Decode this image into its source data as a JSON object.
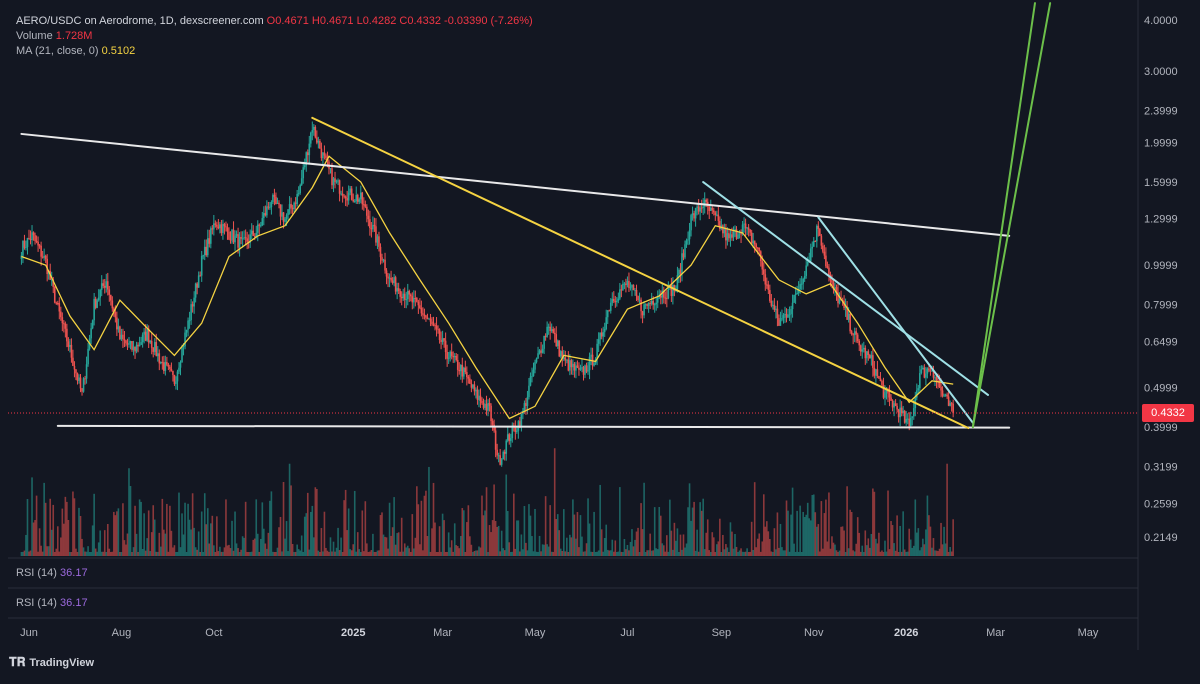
{
  "legend": {
    "symbol": "AERO/USDC on Aerodrome, 1D, dexscreener.com",
    "ohlc": "O0.4671 H0.4671 L0.4282 C0.4332 -0.03390 (-7.26%)",
    "volume_label": "Volume",
    "volume_value": "1.728M",
    "ma_label": "MA (21, close, 0)",
    "ma_value": "0.5102"
  },
  "rsi": [
    {
      "label": "RSI (14)",
      "value": "36.17"
    },
    {
      "label": "RSI (14)",
      "value": "36.17"
    }
  ],
  "last_price": "0.4332",
  "brand": "TradingView",
  "colors": {
    "background": "#131722",
    "up": "#26a69a",
    "down": "#ef5350",
    "ma": "#f5d342",
    "trend_white": "#e9e9ea",
    "trend_yellow": "#f5d342",
    "trend_cyan": "#9fe0e6",
    "trend_green": "#6cc04a",
    "price_line": "#f23645"
  },
  "chart_data": {
    "type": "candlestick",
    "title": "AERO/USDC on Aerodrome, 1D, dexscreener.com",
    "price_axis": {
      "scale": "log",
      "ticks": [
        "4.0000",
        "3.0000",
        "2.3999",
        "1.9999",
        "1.5999",
        "1.2999",
        "0.9999",
        "0.7999",
        "0.6499",
        "0.4999",
        "0.3999",
        "0.3199",
        "0.2599",
        "0.2149"
      ]
    },
    "time_axis": {
      "ticks": [
        {
          "label": "Jun",
          "bold": false
        },
        {
          "label": "Aug",
          "bold": false
        },
        {
          "label": "Oct",
          "bold": false
        },
        {
          "label": "2025",
          "bold": true
        },
        {
          "label": "Mar",
          "bold": false
        },
        {
          "label": "May",
          "bold": false
        },
        {
          "label": "Jul",
          "bold": false
        },
        {
          "label": "Sep",
          "bold": false
        },
        {
          "label": "Nov",
          "bold": false
        },
        {
          "label": "2026",
          "bold": true
        },
        {
          "label": "Mar",
          "bold": false
        },
        {
          "label": "May",
          "bold": false
        }
      ]
    },
    "close_path": [
      [
        "2024-05-27",
        1.1
      ],
      [
        "2024-06-03",
        1.18
      ],
      [
        "2024-06-12",
        1.02
      ],
      [
        "2024-06-20",
        0.78
      ],
      [
        "2024-06-28",
        0.62
      ],
      [
        "2024-07-06",
        0.48
      ],
      [
        "2024-07-14",
        0.8
      ],
      [
        "2024-07-22",
        0.92
      ],
      [
        "2024-07-31",
        0.66
      ],
      [
        "2024-08-09",
        0.62
      ],
      [
        "2024-08-18",
        0.68
      ],
      [
        "2024-08-27",
        0.58
      ],
      [
        "2024-09-05",
        0.52
      ],
      [
        "2024-09-14",
        0.72
      ],
      [
        "2024-09-23",
        1.02
      ],
      [
        "2024-10-02",
        1.28
      ],
      [
        "2024-10-11",
        1.2
      ],
      [
        "2024-10-20",
        1.12
      ],
      [
        "2024-10-30",
        1.22
      ],
      [
        "2024-11-08",
        1.45
      ],
      [
        "2024-11-17",
        1.3
      ],
      [
        "2024-11-26",
        1.5
      ],
      [
        "2024-12-05",
        2.2
      ],
      [
        "2024-12-12",
        1.85
      ],
      [
        "2024-12-19",
        1.6
      ],
      [
        "2024-12-28",
        1.5
      ],
      [
        "2025-01-06",
        1.45
      ],
      [
        "2025-01-15",
        1.2
      ],
      [
        "2025-01-25",
        0.92
      ],
      [
        "2025-02-04",
        0.85
      ],
      [
        "2025-02-14",
        0.78
      ],
      [
        "2025-02-23",
        0.7
      ],
      [
        "2025-03-05",
        0.6
      ],
      [
        "2025-03-14",
        0.55
      ],
      [
        "2025-03-23",
        0.48
      ],
      [
        "2025-04-01",
        0.44
      ],
      [
        "2025-04-07",
        0.33
      ],
      [
        "2025-04-14",
        0.38
      ],
      [
        "2025-04-22",
        0.42
      ],
      [
        "2025-04-30",
        0.55
      ],
      [
        "2025-05-10",
        0.72
      ],
      [
        "2025-05-20",
        0.58
      ],
      [
        "2025-05-31",
        0.54
      ],
      [
        "2025-06-10",
        0.6
      ],
      [
        "2025-06-20",
        0.82
      ],
      [
        "2025-07-01",
        0.9
      ],
      [
        "2025-07-11",
        0.78
      ],
      [
        "2025-07-22",
        0.85
      ],
      [
        "2025-08-02",
        0.88
      ],
      [
        "2025-08-12",
        1.3
      ],
      [
        "2025-08-20",
        1.42
      ],
      [
        "2025-08-28",
        1.3
      ],
      [
        "2025-09-06",
        1.15
      ],
      [
        "2025-09-15",
        1.25
      ],
      [
        "2025-09-25",
        1.1
      ],
      [
        "2025-10-02",
        0.85
      ],
      [
        "2025-10-09",
        0.72
      ],
      [
        "2025-10-18",
        0.8
      ],
      [
        "2025-10-27",
        1.0
      ],
      [
        "2025-11-04",
        1.25
      ],
      [
        "2025-11-12",
        0.9
      ],
      [
        "2025-11-21",
        0.78
      ],
      [
        "2025-11-30",
        0.64
      ],
      [
        "2025-12-09",
        0.58
      ],
      [
        "2025-12-18",
        0.48
      ],
      [
        "2025-12-27",
        0.44
      ],
      [
        "2026-01-03",
        0.4
      ],
      [
        "2026-01-10",
        0.54
      ],
      [
        "2026-01-18",
        0.56
      ],
      [
        "2026-01-25",
        0.48
      ],
      [
        "2026-02-01",
        0.4332
      ]
    ],
    "ma_path": [
      [
        "2024-05-27",
        1.05
      ],
      [
        "2024-06-12",
        1.0
      ],
      [
        "2024-06-28",
        0.75
      ],
      [
        "2024-07-14",
        0.62
      ],
      [
        "2024-07-31",
        0.82
      ],
      [
        "2024-08-18",
        0.7
      ],
      [
        "2024-09-05",
        0.6
      ],
      [
        "2024-09-23",
        0.72
      ],
      [
        "2024-10-11",
        1.05
      ],
      [
        "2024-10-30",
        1.18
      ],
      [
        "2024-11-17",
        1.25
      ],
      [
        "2024-12-05",
        1.55
      ],
      [
        "2024-12-16",
        1.85
      ],
      [
        "2025-01-06",
        1.6
      ],
      [
        "2025-01-25",
        1.2
      ],
      [
        "2025-02-14",
        0.92
      ],
      [
        "2025-03-05",
        0.72
      ],
      [
        "2025-03-23",
        0.56
      ],
      [
        "2025-04-14",
        0.42
      ],
      [
        "2025-05-01",
        0.45
      ],
      [
        "2025-05-20",
        0.6
      ],
      [
        "2025-06-10",
        0.58
      ],
      [
        "2025-07-01",
        0.78
      ],
      [
        "2025-07-22",
        0.84
      ],
      [
        "2025-08-12",
        1.0
      ],
      [
        "2025-08-28",
        1.25
      ],
      [
        "2025-09-15",
        1.2
      ],
      [
        "2025-10-09",
        0.92
      ],
      [
        "2025-10-27",
        0.85
      ],
      [
        "2025-11-12",
        0.9
      ],
      [
        "2025-11-30",
        0.72
      ],
      [
        "2025-12-18",
        0.56
      ],
      [
        "2026-01-03",
        0.46
      ],
      [
        "2026-01-18",
        0.52
      ],
      [
        "2026-02-01",
        0.5102
      ]
    ],
    "trend_lines": [
      {
        "name": "white-descending",
        "color": "trend_white",
        "from": [
          "2024-05-27",
          2.1
        ],
        "to": [
          "2026-03-10",
          1.18
        ]
      },
      {
        "name": "white-support",
        "color": "trend_white",
        "from": [
          "2024-06-20",
          0.403
        ],
        "to": [
          "2026-03-10",
          0.399
        ]
      },
      {
        "name": "yellow-descending",
        "color": "trend_yellow",
        "from": [
          "2024-12-05",
          2.3
        ],
        "to": [
          "2026-02-11",
          0.398
        ]
      },
      {
        "name": "cyan-1",
        "color": "trend_cyan",
        "from": [
          "2025-08-20",
          1.6
        ],
        "to": [
          "2026-02-24",
          0.48
        ]
      },
      {
        "name": "cyan-2",
        "color": "trend_cyan",
        "from": [
          "2025-11-04",
          1.31
        ],
        "to": [
          "2026-02-14",
          0.41
        ]
      },
      {
        "name": "green-1",
        "color": "trend_green",
        "from": [
          "2026-02-14",
          0.4
        ],
        "to": [
          "2026-03-27",
          4.4
        ]
      },
      {
        "name": "green-2",
        "color": "trend_green",
        "from": [
          "2026-02-14",
          0.4
        ],
        "to": [
          "2026-04-06",
          4.4
        ]
      }
    ]
  }
}
